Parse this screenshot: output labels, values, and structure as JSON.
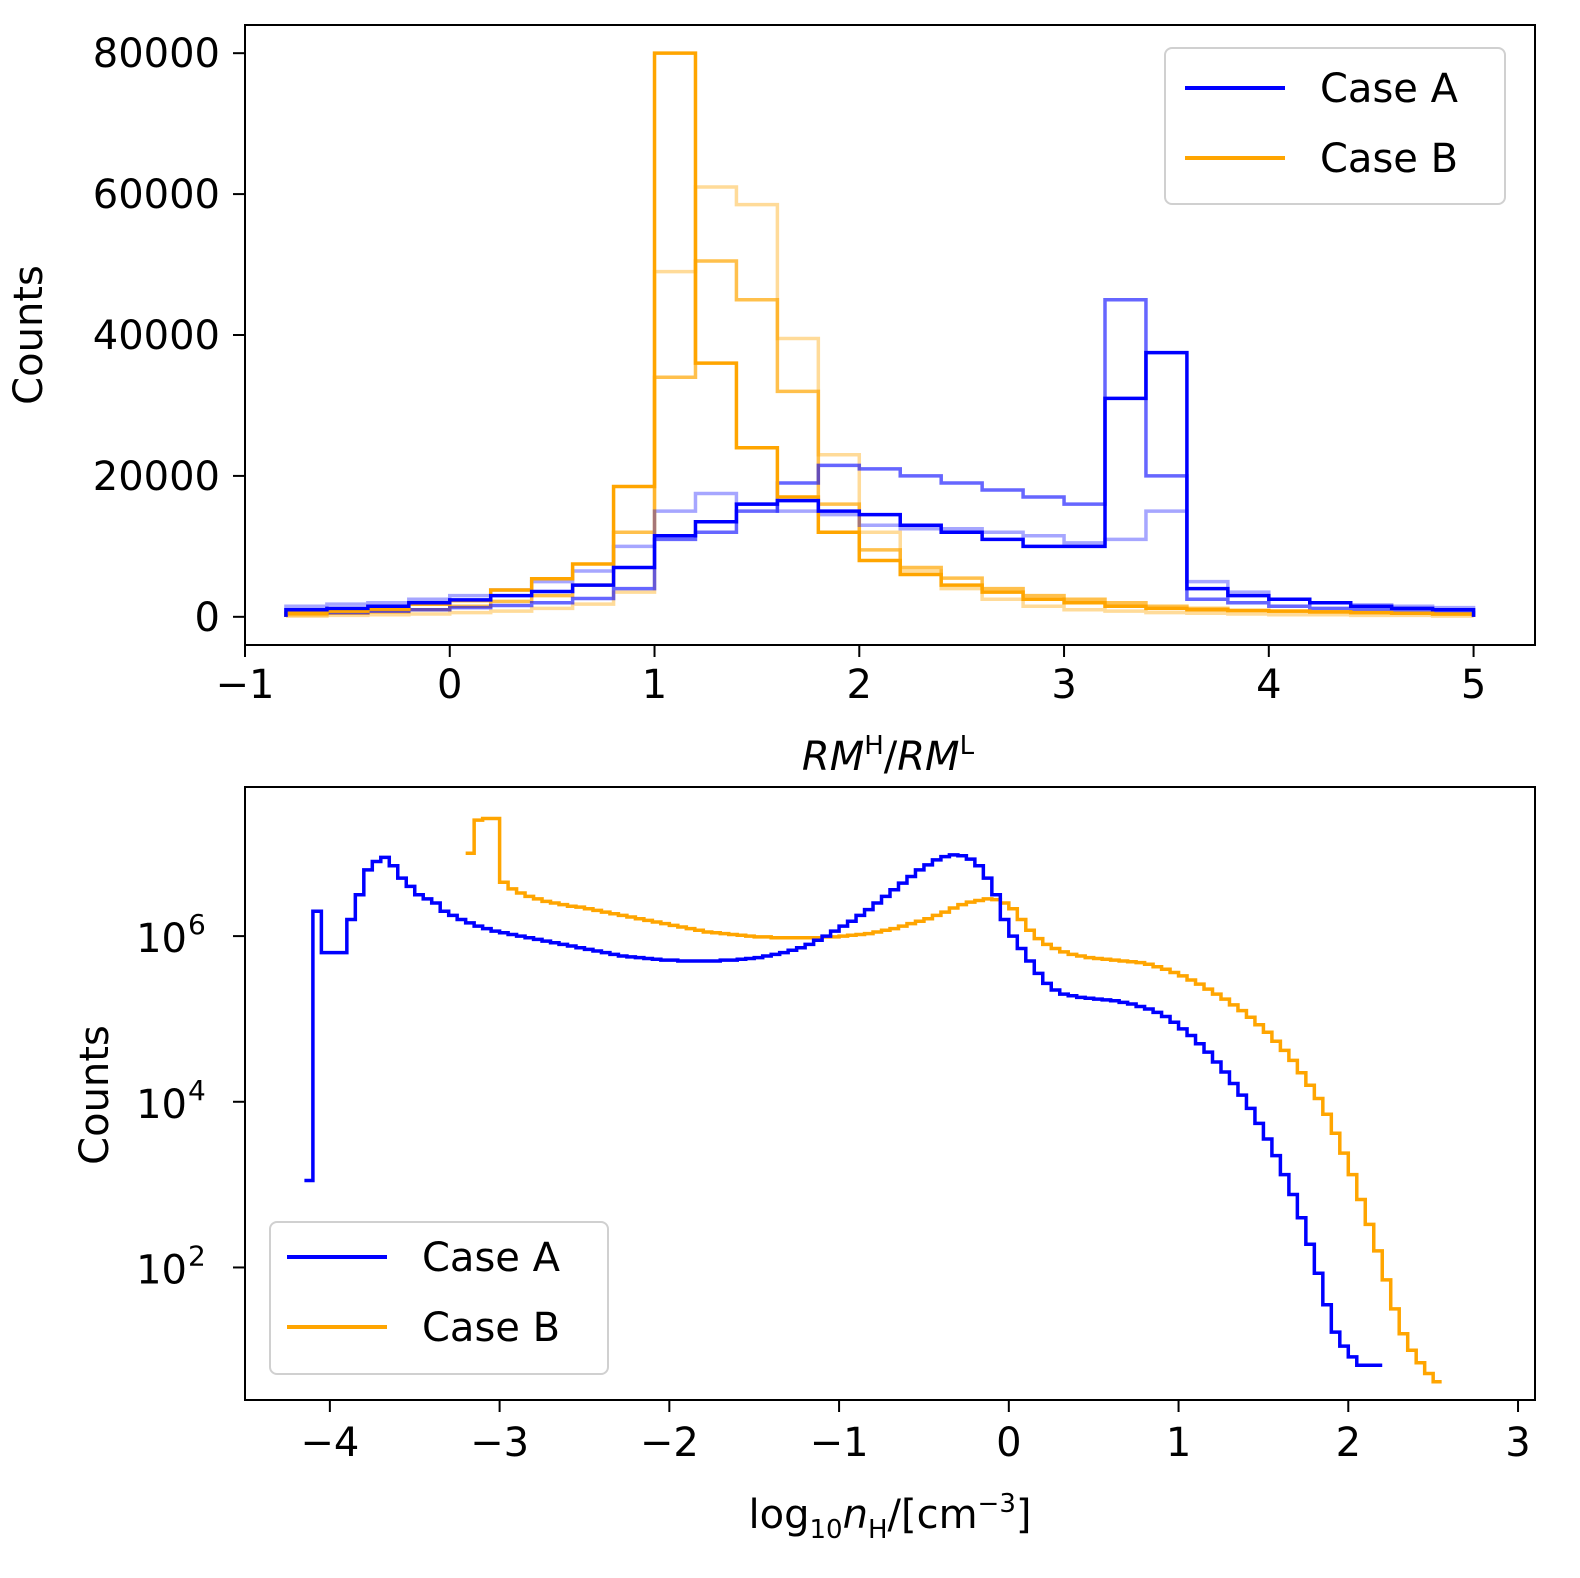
{
  "chart_data": [
    {
      "type": "histogram",
      "xlabel": "RM^H/RM^L",
      "ylabel": "Counts",
      "xlim": [
        -1.0,
        5.3
      ],
      "ylim": [
        -4000,
        84000
      ],
      "xticks": [
        -1,
        0,
        1,
        2,
        3,
        4,
        5
      ],
      "xtick_labels": [
        "−1",
        "0",
        "1",
        "2",
        "3",
        "4",
        "5"
      ],
      "yticks": [
        0,
        20000,
        40000,
        60000,
        80000
      ],
      "ytick_labels": [
        "0",
        "20000",
        "40000",
        "60000",
        "80000"
      ],
      "legend": {
        "position": "upper right",
        "entries": [
          {
            "label": "Case A",
            "color": "#0000ff"
          },
          {
            "label": "Case B",
            "color": "#ffa500"
          }
        ]
      },
      "bin_edges": [
        -0.8,
        -0.6,
        -0.4,
        -0.2,
        0.0,
        0.2,
        0.4,
        0.6,
        0.8,
        1.0,
        1.2,
        1.4,
        1.6,
        1.8,
        2.0,
        2.2,
        2.4,
        2.6,
        2.8,
        3.0,
        3.2,
        3.4,
        3.6,
        3.8,
        4.0,
        4.2,
        4.4,
        4.6,
        4.8,
        5.0
      ],
      "series": [
        {
          "name": "Case A",
          "color": "#0000ff",
          "opacity": 1.0,
          "counts": [
            1000,
            1200,
            1500,
            2000,
            2400,
            3000,
            3600,
            4500,
            7000,
            11500,
            13500,
            16000,
            16500,
            15000,
            14500,
            13000,
            12000,
            11000,
            10000,
            10000,
            31000,
            37500,
            4000,
            3000,
            2500,
            2000,
            1500,
            1200,
            1000
          ]
        },
        {
          "name": "",
          "color": "#0000ff",
          "opacity": 0.6,
          "counts": [
            500,
            600,
            800,
            1000,
            1300,
            1600,
            2000,
            2600,
            4000,
            11000,
            12000,
            15000,
            19000,
            21500,
            21000,
            20000,
            19000,
            18000,
            17000,
            16000,
            45000,
            20000,
            2500,
            2000,
            1500,
            1200,
            1000,
            800,
            600
          ]
        },
        {
          "name": "",
          "color": "#0000ff",
          "opacity": 0.35,
          "counts": [
            1500,
            1800,
            2000,
            2500,
            3000,
            3800,
            5000,
            6500,
            10000,
            15000,
            17500,
            16000,
            15000,
            14500,
            13000,
            12500,
            12500,
            12000,
            11500,
            10500,
            11000,
            15000,
            5000,
            3500,
            2500,
            2000,
            1700,
            1500,
            1300
          ]
        },
        {
          "name": "Case B",
          "color": "#ffa500",
          "opacity": 1.0,
          "counts": [
            500,
            800,
            1100,
            1800,
            2300,
            3800,
            5400,
            7500,
            18500,
            80000,
            36000,
            24000,
            17000,
            12000,
            8000,
            6000,
            4500,
            3500,
            2500,
            2000,
            1500,
            1200,
            1000,
            900,
            800,
            700,
            600,
            500,
            400
          ]
        },
        {
          "name": "",
          "color": "#ffa500",
          "opacity": 0.7,
          "counts": [
            300,
            500,
            700,
            1000,
            1500,
            2200,
            3000,
            4500,
            12000,
            34000,
            50500,
            45000,
            32000,
            16000,
            9500,
            7000,
            5500,
            4000,
            3000,
            2500,
            2000,
            1500,
            1200,
            900,
            800,
            700,
            600,
            500,
            400
          ]
        },
        {
          "name": "",
          "color": "#ffa500",
          "opacity": 0.4,
          "counts": [
            100,
            200,
            300,
            400,
            600,
            800,
            1200,
            1800,
            3500,
            49000,
            61000,
            58500,
            39500,
            23000,
            12000,
            6500,
            4000,
            2500,
            1500,
            1000,
            800,
            600,
            500,
            400,
            300,
            300,
            200,
            200,
            100
          ]
        }
      ]
    },
    {
      "type": "histogram",
      "xlabel": "log10 nH/[cm^-3]",
      "ylabel": "Counts",
      "yscale": "log",
      "xlim": [
        -4.5,
        3.1
      ],
      "ylim_log10": [
        0.4,
        7.8
      ],
      "xticks": [
        -4,
        -3,
        -2,
        -1,
        0,
        1,
        2,
        3
      ],
      "xtick_labels": [
        "−4",
        "−3",
        "−2",
        "−1",
        "0",
        "1",
        "2",
        "3"
      ],
      "yticks_log10": [
        2,
        4,
        6
      ],
      "ytick_labels": [
        "10",
        "10",
        "10"
      ],
      "ytick_exponents": [
        "2",
        "4",
        "6"
      ],
      "legend": {
        "position": "lower left",
        "entries": [
          {
            "label": "Case A",
            "color": "#0000ff"
          },
          {
            "label": "Case B",
            "color": "#ffa500"
          }
        ]
      },
      "series": [
        {
          "name": "Case A",
          "color": "#0000ff",
          "x_start": -4.15,
          "x_step": 0.05,
          "log10_counts": [
            3.05,
            6.3,
            5.8,
            5.8,
            5.8,
            6.2,
            6.5,
            6.8,
            6.9,
            6.95,
            6.85,
            6.7,
            6.6,
            6.5,
            6.45,
            6.4,
            6.3,
            6.25,
            6.2,
            6.16,
            6.12,
            6.09,
            6.06,
            6.04,
            6.02,
            6.0,
            5.98,
            5.96,
            5.94,
            5.92,
            5.9,
            5.88,
            5.86,
            5.84,
            5.82,
            5.8,
            5.78,
            5.76,
            5.75,
            5.74,
            5.73,
            5.72,
            5.71,
            5.71,
            5.7,
            5.7,
            5.7,
            5.7,
            5.7,
            5.71,
            5.71,
            5.72,
            5.73,
            5.74,
            5.76,
            5.78,
            5.8,
            5.83,
            5.86,
            5.9,
            5.95,
            6.0,
            6.06,
            6.12,
            6.18,
            6.25,
            6.32,
            6.4,
            6.48,
            6.56,
            6.64,
            6.72,
            6.8,
            6.86,
            6.92,
            6.96,
            6.98,
            6.97,
            6.93,
            6.85,
            6.7,
            6.5,
            6.2,
            6.0,
            5.85,
            5.7,
            5.55,
            5.43,
            5.35,
            5.3,
            5.28,
            5.26,
            5.25,
            5.24,
            5.23,
            5.22,
            5.2,
            5.18,
            5.15,
            5.12,
            5.08,
            5.03,
            4.96,
            4.88,
            4.8,
            4.7,
            4.6,
            4.48,
            4.36,
            4.22,
            4.08,
            3.92,
            3.74,
            3.55,
            3.35,
            3.12,
            2.88,
            2.6,
            2.28,
            1.93,
            1.55,
            1.22,
            1.05,
            0.92,
            0.82,
            0.82,
            0.82
          ]
        },
        {
          "name": "Case B",
          "color": "#ffa500",
          "x_start": -3.2,
          "x_step": 0.05,
          "log10_counts": [
            7.0,
            7.4,
            7.42,
            7.42,
            6.65,
            6.57,
            6.52,
            6.48,
            6.45,
            6.42,
            6.4,
            6.38,
            6.36,
            6.35,
            6.33,
            6.31,
            6.29,
            6.27,
            6.25,
            6.23,
            6.21,
            6.19,
            6.17,
            6.15,
            6.13,
            6.11,
            6.09,
            6.07,
            6.05,
            6.04,
            6.03,
            6.02,
            6.01,
            6.0,
            5.99,
            5.99,
            5.98,
            5.98,
            5.98,
            5.98,
            5.98,
            5.98,
            5.99,
            5.99,
            6.0,
            6.01,
            6.02,
            6.03,
            6.05,
            6.07,
            6.09,
            6.12,
            6.15,
            6.18,
            6.21,
            6.25,
            6.29,
            6.34,
            6.38,
            6.41,
            6.43,
            6.45,
            6.44,
            6.4,
            6.33,
            6.2,
            6.07,
            5.97,
            5.9,
            5.85,
            5.81,
            5.78,
            5.76,
            5.74,
            5.73,
            5.72,
            5.71,
            5.7,
            5.69,
            5.68,
            5.66,
            5.63,
            5.6,
            5.56,
            5.52,
            5.47,
            5.42,
            5.36,
            5.3,
            5.24,
            5.17,
            5.1,
            5.02,
            4.93,
            4.84,
            4.73,
            4.62,
            4.5,
            4.35,
            4.2,
            4.04,
            3.85,
            3.62,
            3.38,
            3.12,
            2.82,
            2.52,
            2.2,
            1.85,
            1.5,
            1.2,
            1.0,
            0.85,
            0.72,
            0.62
          ]
        }
      ]
    }
  ]
}
